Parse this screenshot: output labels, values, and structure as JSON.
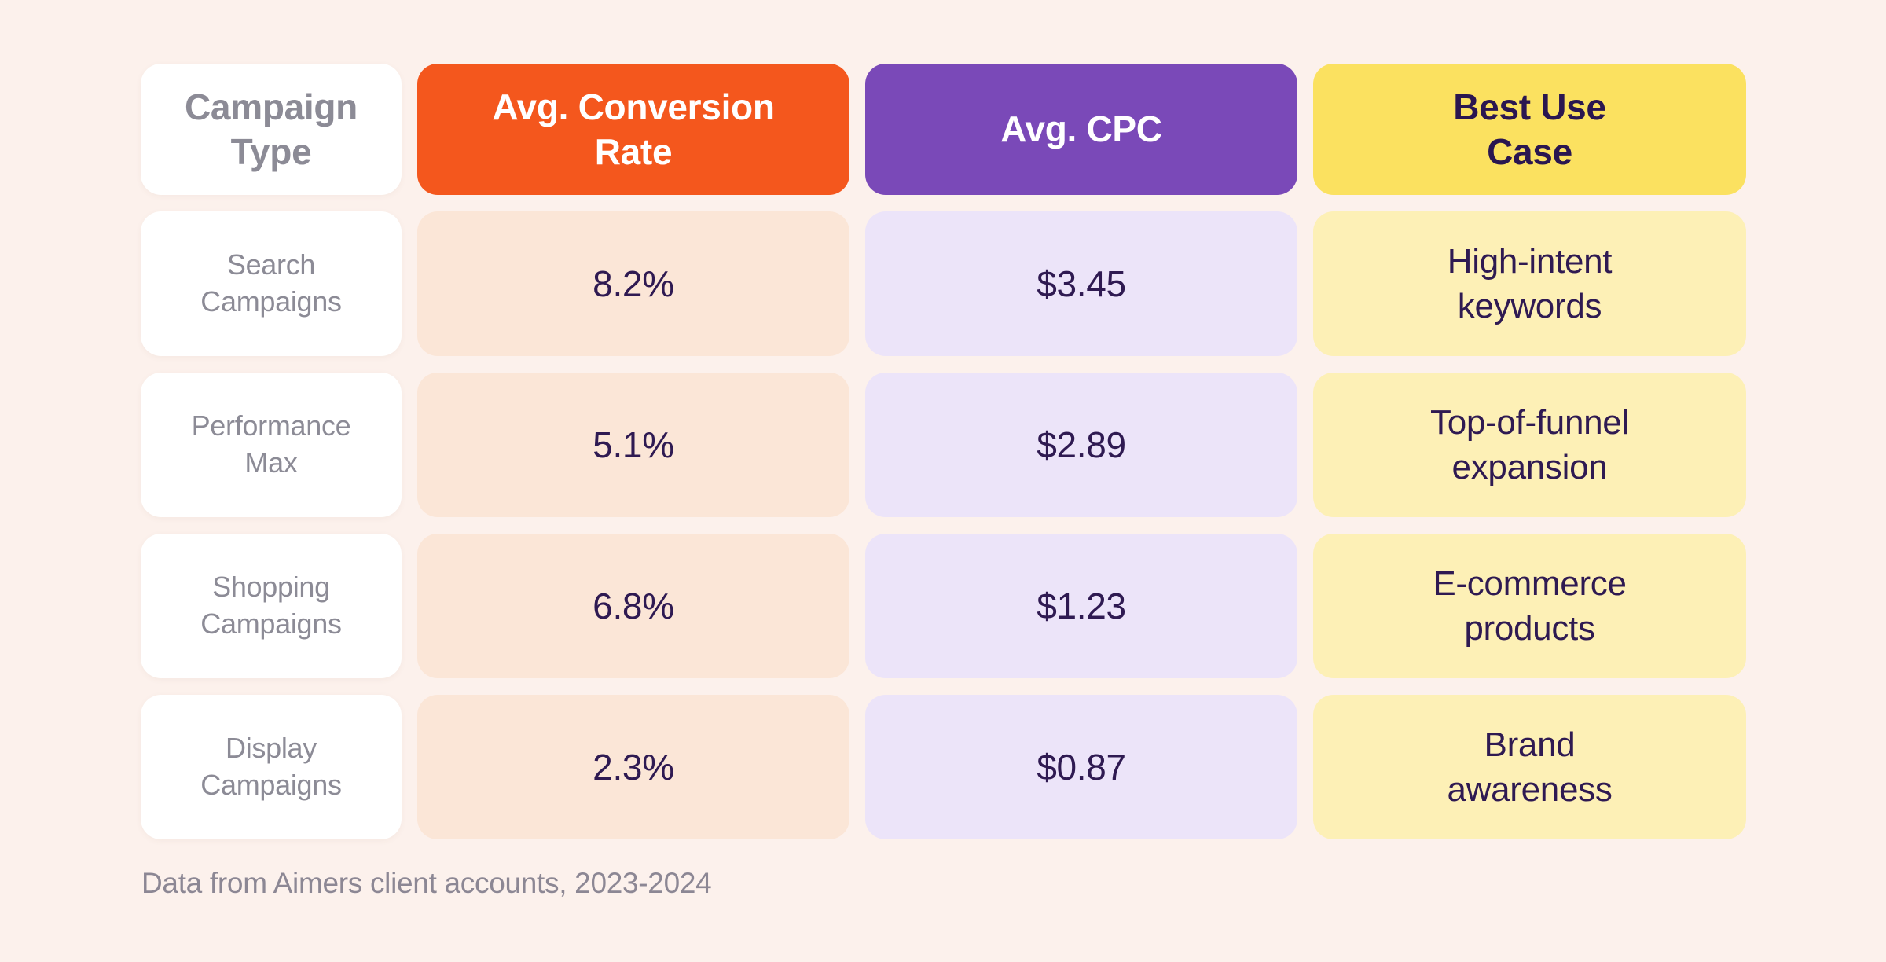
{
  "page": {
    "background_color": "#FCF1EC",
    "footnote": "Data from Aimers client accounts, 2023-2024"
  },
  "colors": {
    "header_campaign_bg": "#FFFFFF",
    "header_conversion_bg": "#F4571D",
    "header_cpc_bg": "#7A49B8",
    "header_usecase_bg": "#FBE160",
    "cell_conversion_bg": "#FBE6D7",
    "cell_cpc_bg": "#ECE4F9",
    "cell_usecase_bg": "#FDF0B6",
    "dark_purple_text": "#2F1A52",
    "gray_text": "#8C8B96",
    "white_text": "#FFFFFF"
  },
  "table": {
    "headers": {
      "campaign_type": "Campaign\nType",
      "conversion_rate": "Avg. Conversion\nRate",
      "cpc": "Avg. CPC",
      "use_case": "Best Use\nCase"
    },
    "rows": [
      {
        "type": "Search\nCampaigns",
        "conversion": "8.2%",
        "cpc": "$3.45",
        "use_case": "High-intent\nkeywords"
      },
      {
        "type": "Performance\nMax",
        "conversion": "5.1%",
        "cpc": "$2.89",
        "use_case": "Top-of-funnel\nexpansion"
      },
      {
        "type": "Shopping\nCampaigns",
        "conversion": "6.8%",
        "cpc": "$1.23",
        "use_case": "E-commerce\nproducts"
      },
      {
        "type": "Display\nCampaigns",
        "conversion": "2.3%",
        "cpc": "$0.87",
        "use_case": "Brand\nawareness"
      }
    ]
  },
  "chart_data": {
    "type": "table",
    "title": "",
    "columns": [
      "Campaign Type",
      "Avg. Conversion Rate",
      "Avg. CPC",
      "Best Use Case"
    ],
    "categories": [
      "Search Campaigns",
      "Performance Max",
      "Shopping Campaigns",
      "Display Campaigns"
    ],
    "rows": [
      [
        "Search Campaigns",
        "8.2%",
        "$3.45",
        "High-intent keywords"
      ],
      [
        "Performance Max",
        "5.1%",
        "$2.89",
        "Top-of-funnel expansion"
      ],
      [
        "Shopping Campaigns",
        "6.8%",
        "$1.23",
        "E-commerce products"
      ],
      [
        "Display Campaigns",
        "2.3%",
        "$0.87",
        "Brand awareness"
      ]
    ],
    "series": [
      {
        "name": "Avg. Conversion Rate (%)",
        "values": [
          8.2,
          5.1,
          6.8,
          2.3
        ]
      },
      {
        "name": "Avg. CPC ($)",
        "values": [
          3.45,
          2.89,
          1.23,
          0.87
        ]
      }
    ],
    "footnote": "Data from Aimers client accounts, 2023-2024"
  }
}
